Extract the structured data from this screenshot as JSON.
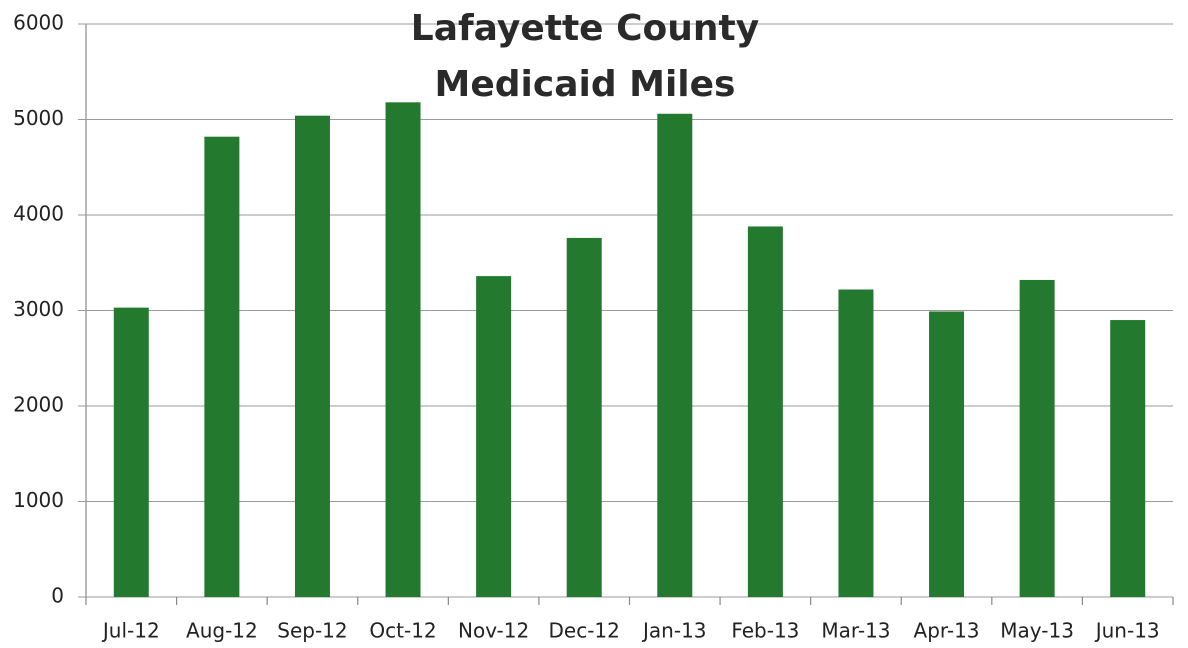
{
  "chart_data": {
    "type": "bar",
    "title": [
      "Lafayette County",
      "Medicaid Miles"
    ],
    "categories": [
      "Jul-12",
      "Aug-12",
      "Sep-12",
      "Oct-12",
      "Nov-12",
      "Dec-12",
      "Jan-13",
      "Feb-13",
      "Mar-13",
      "Apr-13",
      "May-13",
      "Jun-13"
    ],
    "values": [
      3030,
      4820,
      5040,
      5180,
      3360,
      3760,
      5060,
      3880,
      3220,
      2990,
      3320,
      2900
    ],
    "color": "#237a2f",
    "ylim": [
      0,
      6000
    ],
    "yticks": [
      0,
      1000,
      2000,
      3000,
      4000,
      5000,
      6000
    ],
    "grid": true
  }
}
